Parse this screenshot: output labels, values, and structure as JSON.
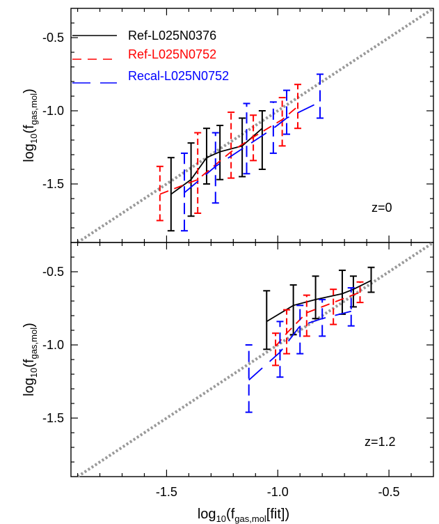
{
  "colors": {
    "ref_l025n0376": "#000000",
    "ref_l025n0752": "#ff0000",
    "recal_l025n0752": "#0000ff",
    "one_to_one_line": "#999999"
  },
  "chart_data": [
    {
      "type": "line",
      "panel": "top",
      "ylabel_main": "log",
      "ylabel_sub": "10",
      "ylabel_paren": "(f",
      "ylabel_subscript": "gas,mol",
      "ylabel_close": ")",
      "xlim": [
        -1.93,
        -0.3
      ],
      "ylim": [
        -1.9,
        -0.3
      ],
      "yticks": [
        -0.5,
        -1.0,
        -1.5
      ],
      "ytick_labels": [
        "-0.5",
        "-1.0",
        "-1.5"
      ],
      "xticks": [
        -1.5,
        -1.0,
        -0.5
      ],
      "annotation": "z=0",
      "legend": [
        "Ref-L025N0376",
        "Ref-L025N0752",
        "Recal-L025N0752"
      ],
      "legend_position": "top-left",
      "one_to_one": true,
      "series": [
        {
          "name": "Ref-L025N0376",
          "style": "solid",
          "x": [
            -1.48,
            -1.39,
            -1.32,
            -1.26,
            -1.16,
            -1.07
          ],
          "y": [
            -1.57,
            -1.47,
            -1.32,
            -1.28,
            -1.24,
            -1.12
          ],
          "err_low": [
            -1.82,
            -1.72,
            -1.5,
            -1.47,
            -1.45,
            -1.4
          ],
          "err_high": [
            -1.32,
            -1.22,
            -1.12,
            -1.1,
            -1.05,
            -1.0
          ]
        },
        {
          "name": "Ref-L025N0752",
          "style": "dashed",
          "x": [
            -1.53,
            -1.36,
            -1.21,
            -1.11,
            -0.98,
            -0.91
          ],
          "y": [
            -1.57,
            -1.47,
            -1.28,
            -1.18,
            -1.06,
            -0.97
          ],
          "err_low": [
            -1.75,
            -1.7,
            -1.46,
            -1.34,
            -1.24,
            -1.12
          ],
          "err_high": [
            -1.38,
            -1.15,
            -1.01,
            -1.03,
            -0.91,
            -0.82
          ]
        },
        {
          "name": "Recal-L025N0752",
          "style": "long-dashed",
          "x": [
            -1.42,
            -1.28,
            -1.14,
            -1.02,
            -0.96,
            -0.81
          ],
          "y": [
            -1.56,
            -1.38,
            -1.24,
            -1.12,
            -1.05,
            -0.94
          ],
          "err_low": [
            -1.82,
            -1.63,
            -1.43,
            -1.29,
            -1.16,
            -1.05
          ],
          "err_high": [
            -1.29,
            -1.15,
            -0.95,
            -0.94,
            -0.86,
            -0.75
          ]
        }
      ]
    },
    {
      "type": "line",
      "panel": "bottom",
      "ylabel_main": "log",
      "ylabel_sub": "10",
      "ylabel_paren": "(f",
      "ylabel_subscript": "gas,mol",
      "ylabel_close": ")",
      "xlabel_main": "log",
      "xlabel_sub": "10",
      "xlabel_paren": "(f",
      "xlabel_subscript": "gas,mol",
      "xlabel_close": "[fit])",
      "xlim": [
        -1.93,
        -0.3
      ],
      "ylim": [
        -1.9,
        -0.3
      ],
      "yticks": [
        -0.5,
        -1.0,
        -1.5
      ],
      "ytick_labels": [
        "-0.5",
        "-1.0",
        "-1.5"
      ],
      "xticks": [
        -1.5,
        -1.0,
        -0.5
      ],
      "xtick_labels": [
        "-1.5",
        "-1.0",
        "-0.5"
      ],
      "annotation": "z=1.2",
      "one_to_one": true,
      "series": [
        {
          "name": "Ref-L025N0376",
          "style": "solid",
          "x": [
            -1.05,
            -0.93,
            -0.83,
            -0.71,
            -0.66,
            -0.58
          ],
          "y": [
            -0.84,
            -0.73,
            -0.69,
            -0.65,
            -0.62,
            -0.56
          ],
          "err_low": [
            -1.03,
            -0.93,
            -0.82,
            -0.79,
            -0.74,
            -0.64
          ],
          "err_high": [
            -0.63,
            -0.59,
            -0.53,
            -0.49,
            -0.53,
            -0.47
          ]
        },
        {
          "name": "Ref-L025N0752",
          "style": "dashed",
          "x": [
            -1.01,
            -0.96,
            -0.87,
            -0.75,
            -0.63
          ],
          "y": [
            -1.01,
            -0.92,
            -0.78,
            -0.71,
            -0.64
          ],
          "err_low": [
            -1.14,
            -1.06,
            -0.94,
            -0.86,
            -0.71
          ],
          "err_high": [
            -0.92,
            -0.76,
            -0.66,
            -0.62,
            -0.57
          ]
        },
        {
          "name": "Recal-L025N0752",
          "style": "long-dashed",
          "x": [
            -1.13,
            -0.99,
            -0.9,
            -0.8,
            -0.67
          ],
          "y": [
            -1.24,
            -1.05,
            -0.87,
            -0.82,
            -0.77
          ],
          "err_low": [
            -1.46,
            -1.22,
            -1.06,
            -0.94,
            -0.87
          ],
          "err_high": [
            -1.0,
            -0.84,
            -0.73,
            -0.69,
            -0.61
          ]
        }
      ]
    }
  ]
}
